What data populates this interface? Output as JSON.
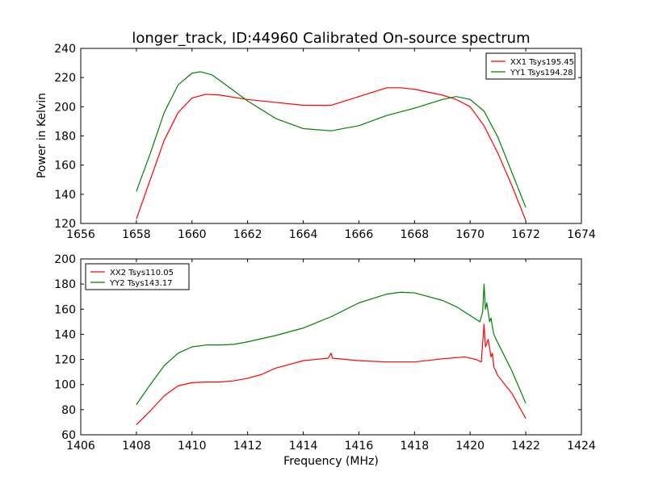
{
  "figure": {
    "title": "longer_track, ID:44960 Calibrated On-source spectrum",
    "xlabel": "Frequency (MHz)",
    "ylabel": "Power in Kelvin"
  },
  "chart_data": [
    {
      "type": "line",
      "panel": "top",
      "xlim": [
        1656,
        1674
      ],
      "ylim": [
        120,
        240
      ],
      "xticks": [
        1656,
        1658,
        1660,
        1662,
        1664,
        1666,
        1668,
        1670,
        1672,
        1674
      ],
      "yticks": [
        120,
        140,
        160,
        180,
        200,
        220,
        240
      ],
      "ylabel": "Power in Kelvin",
      "legend_position": "top-right",
      "grid": false,
      "series": [
        {
          "name": "XX1 Tsys195.45",
          "color": "#ff0000",
          "x": [
            1658.0,
            1658.5,
            1659.0,
            1659.5,
            1660.0,
            1660.5,
            1661.0,
            1662.0,
            1663.0,
            1664.0,
            1665.0,
            1666.0,
            1667.0,
            1667.5,
            1668.0,
            1669.0,
            1669.5,
            1670.0,
            1670.5,
            1671.0,
            1671.5,
            1672.0
          ],
          "y": [
            123,
            150,
            177,
            196,
            206,
            208.5,
            208,
            205,
            203,
            201,
            201,
            207,
            213,
            213,
            212,
            208,
            205,
            200,
            187,
            168,
            146,
            122
          ]
        },
        {
          "name": "YY1 Tsys194.28",
          "color": "#008000",
          "x": [
            1658.0,
            1658.5,
            1659.0,
            1659.5,
            1660.0,
            1660.3,
            1660.7,
            1661.0,
            1662.0,
            1663.0,
            1664.0,
            1665.0,
            1666.0,
            1667.0,
            1668.0,
            1669.0,
            1669.5,
            1670.0,
            1670.5,
            1671.0,
            1671.5,
            1672.0
          ],
          "y": [
            142,
            168,
            196,
            215,
            223,
            224,
            222,
            218,
            204,
            192,
            185,
            183.5,
            187,
            194,
            199,
            205,
            207,
            205,
            197,
            179,
            155,
            131
          ]
        }
      ]
    },
    {
      "type": "line",
      "panel": "bottom",
      "xlim": [
        1406,
        1424
      ],
      "ylim": [
        60,
        200
      ],
      "xticks": [
        1406,
        1408,
        1410,
        1412,
        1414,
        1416,
        1418,
        1420,
        1422,
        1424
      ],
      "yticks": [
        60,
        80,
        100,
        120,
        140,
        160,
        180,
        200
      ],
      "xlabel": "Frequency (MHz)",
      "legend_position": "top-left",
      "grid": false,
      "series": [
        {
          "name": "XX2 Tsys110.05",
          "color": "#ff0000",
          "x": [
            1408.0,
            1408.5,
            1409.0,
            1409.5,
            1410.0,
            1410.5,
            1411.0,
            1411.5,
            1412.0,
            1412.5,
            1413.0,
            1414.0,
            1414.9,
            1415.0,
            1415.05,
            1416.0,
            1417.0,
            1418.0,
            1419.0,
            1419.8,
            1420.2,
            1420.4,
            1420.5,
            1420.55,
            1420.65,
            1420.75,
            1420.8,
            1420.85,
            1421.0,
            1421.5,
            1422.0
          ],
          "y": [
            68,
            79,
            91,
            99,
            101.5,
            102,
            102,
            103,
            105,
            108,
            113,
            119,
            121,
            125,
            121,
            119,
            118,
            118,
            120.5,
            122,
            120,
            118,
            148,
            130,
            136,
            122,
            125,
            114,
            107,
            93,
            73
          ]
        },
        {
          "name": "YY2 Tsys143.17",
          "color": "#008000",
          "x": [
            1408.0,
            1408.5,
            1409.0,
            1409.5,
            1410.0,
            1410.5,
            1411.0,
            1411.5,
            1412.0,
            1413.0,
            1414.0,
            1415.0,
            1416.0,
            1417.0,
            1417.5,
            1418.0,
            1419.0,
            1419.5,
            1420.0,
            1420.35,
            1420.45,
            1420.5,
            1420.55,
            1420.6,
            1420.7,
            1420.75,
            1420.8,
            1420.85,
            1421.0,
            1421.5,
            1422.0
          ],
          "y": [
            84,
            100,
            115,
            125,
            130,
            131.5,
            131.5,
            132,
            134,
            139,
            145,
            154,
            165,
            172,
            173.5,
            173,
            167,
            162,
            155,
            150,
            158,
            180,
            160,
            165,
            150,
            153,
            146,
            140,
            133,
            111,
            85
          ]
        }
      ]
    }
  ]
}
